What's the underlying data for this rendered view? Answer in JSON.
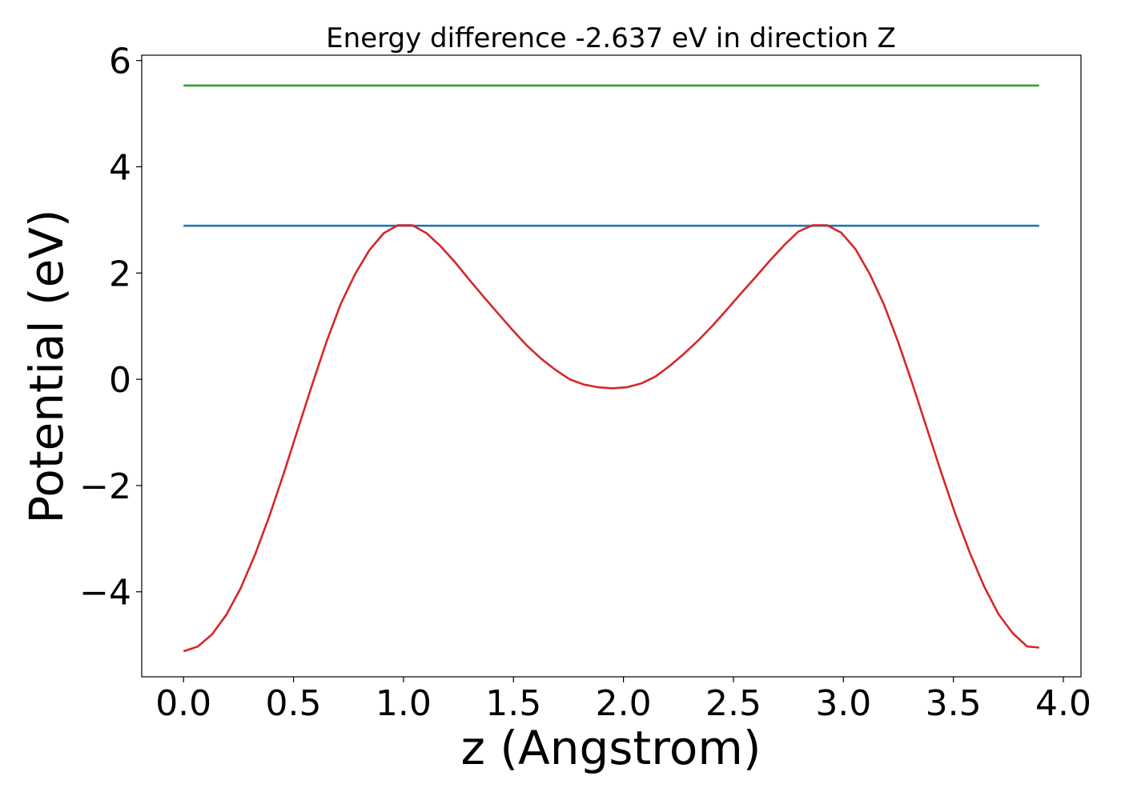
{
  "chart_data": {
    "type": "line",
    "title": "Energy difference -2.637 eV in direction Z",
    "xlabel": "z (Angstrom)",
    "ylabel": "Potential (eV)",
    "xlim": [
      -0.19,
      4.08
    ],
    "ylim": [
      -5.6,
      6.1
    ],
    "xticks": [
      0.0,
      0.5,
      1.0,
      1.5,
      2.0,
      2.5,
      3.0,
      3.5,
      4.0
    ],
    "xtick_labels": [
      "0.0",
      "0.5",
      "1.0",
      "1.5",
      "2.0",
      "2.5",
      "3.0",
      "3.5",
      "4.0"
    ],
    "yticks": [
      -4,
      -2,
      0,
      2,
      4,
      6
    ],
    "ytick_labels": [
      "−4",
      "−2",
      "0",
      "2",
      "4",
      "6"
    ],
    "grid": false,
    "series": [
      {
        "color": "#2ca02c",
        "x": [
          0.0,
          3.89
        ],
        "y": [
          5.53,
          5.53
        ]
      },
      {
        "color": "#1f77b4",
        "x": [
          0.0,
          3.89
        ],
        "y": [
          2.89,
          2.89
        ]
      },
      {
        "color": "#d62728",
        "x": [
          0.0,
          0.065,
          0.13,
          0.195,
          0.26,
          0.325,
          0.39,
          0.455,
          0.52,
          0.585,
          0.65,
          0.715,
          0.78,
          0.845,
          0.91,
          0.975,
          1.04,
          1.105,
          1.17,
          1.235,
          1.3,
          1.365,
          1.43,
          1.495,
          1.56,
          1.625,
          1.69,
          1.755,
          1.82,
          1.885,
          1.95,
          2.015,
          2.08,
          2.145,
          2.21,
          2.275,
          2.34,
          2.405,
          2.47,
          2.535,
          2.6,
          2.665,
          2.73,
          2.795,
          2.86,
          2.925,
          2.99,
          3.055,
          3.12,
          3.185,
          3.25,
          3.315,
          3.38,
          3.445,
          3.51,
          3.575,
          3.64,
          3.705,
          3.77,
          3.835,
          3.89
        ],
        "y": [
          -5.12,
          -5.03,
          -4.8,
          -4.43,
          -3.93,
          -3.3,
          -2.58,
          -1.78,
          -0.94,
          -0.1,
          0.71,
          1.42,
          1.98,
          2.43,
          2.75,
          2.9,
          2.9,
          2.75,
          2.5,
          2.2,
          1.87,
          1.55,
          1.24,
          0.93,
          0.64,
          0.39,
          0.18,
          0.0,
          -0.1,
          -0.15,
          -0.17,
          -0.15,
          -0.08,
          0.05,
          0.25,
          0.48,
          0.73,
          1.01,
          1.31,
          1.62,
          1.92,
          2.23,
          2.52,
          2.78,
          2.9,
          2.9,
          2.76,
          2.45,
          1.98,
          1.4,
          0.69,
          -0.1,
          -0.93,
          -1.76,
          -2.55,
          -3.27,
          -3.9,
          -4.42,
          -4.78,
          -5.03,
          -5.05
        ]
      }
    ]
  }
}
